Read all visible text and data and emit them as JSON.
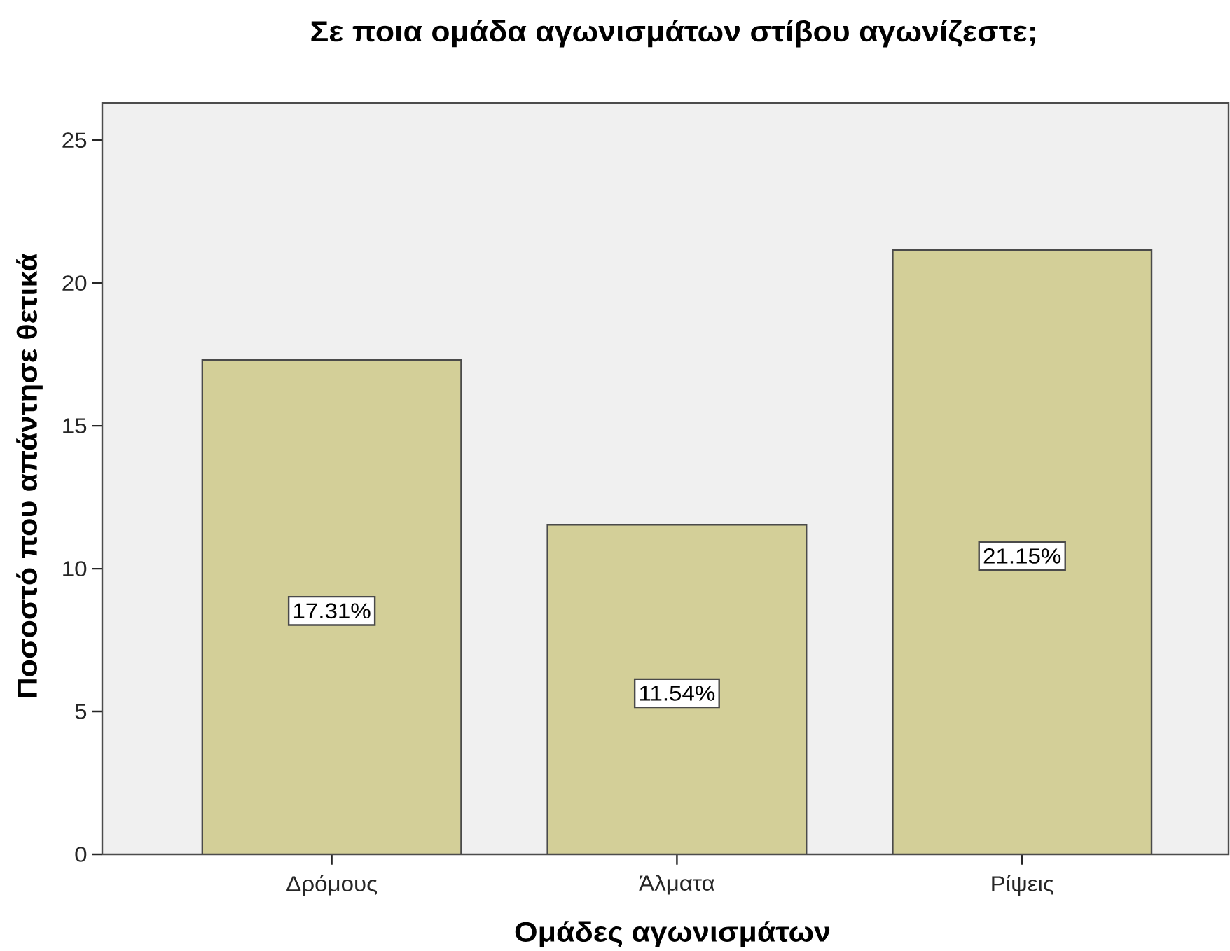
{
  "chart_data": {
    "type": "bar",
    "title": "Σε ποια ομάδα αγωνισμάτων στίβου αγωνίζεστε;",
    "xlabel": "Ομάδες αγωνισμάτων",
    "ylabel": "Ποσοστό που απάντησε θετικά",
    "categories": [
      "Δρόμους",
      "Άλματα",
      "Ρίψεις"
    ],
    "values": [
      17.31,
      11.54,
      21.15
    ],
    "value_labels": [
      "17.31%",
      "11.54%",
      "21.15%"
    ],
    "color": "#d3cf98",
    "ylim": [
      0,
      26.3
    ],
    "yticks": [
      0,
      5,
      10,
      15,
      20,
      25
    ]
  }
}
